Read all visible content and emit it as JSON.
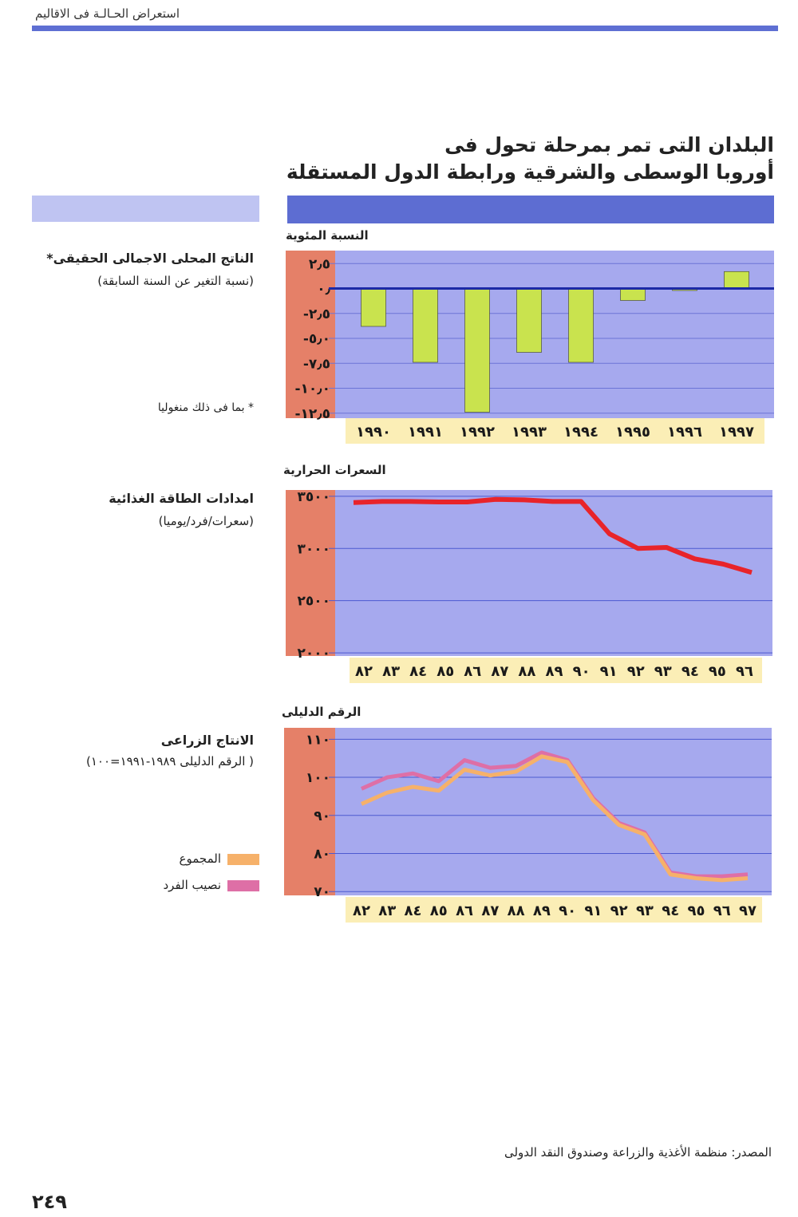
{
  "header": {
    "section": "استعراض الحـالـة فى الاقاليم"
  },
  "title": {
    "line1": "البلدان التى تمر بمرحلة تحول فى",
    "line2": "أوروبا الوسطى والشرقية ورابطة الدول المستقلة"
  },
  "sections": [
    {
      "title": "الناتج المحلى الاجمالى الحقيقى*",
      "subtitle": "(نسبة التغير عن السنة السابقة)",
      "unit": "النسبة المئوية",
      "footnote": "* بما فى ذلك منغوليا"
    },
    {
      "title": "امدادات الطاقة الغذائية",
      "subtitle": "(سعرات/فرد/يوميا)",
      "unit": "السعرات الحرارية"
    },
    {
      "title": "الانتاج الزراعى",
      "subtitle": "( الرقم الدليلى ١٩٨٩-١٩٩١=١٠٠)",
      "unit": "الرقم الدليلى",
      "legend": [
        {
          "name": "المجموع",
          "color": "#f6b16a"
        },
        {
          "name": "نصيب الفرد",
          "color": "#de6fa6"
        }
      ]
    }
  ],
  "chart_data": [
    {
      "type": "bar",
      "categories": [
        "١٩٩٠",
        "١٩٩١",
        "١٩٩٢",
        "١٩٩٣",
        "١٩٩٤",
        "١٩٩٥",
        "١٩٩٦",
        "١٩٩٧"
      ],
      "values": [
        -3.8,
        -7.4,
        -12.4,
        -6.4,
        -7.4,
        -1.2,
        -0.2,
        1.7
      ],
      "yticks": [
        2.5,
        0,
        -2.5,
        -5,
        -7.5,
        -10,
        -12.5
      ],
      "ytick_labels": [
        "٢٫٥",
        "٠٫",
        "-٢٫٥",
        "-٥٫٠",
        "-٧٫٥",
        "-١٠٫٠",
        "-١٢٫٥"
      ],
      "ylim": [
        -13,
        3.8
      ],
      "colors": {
        "bar": "#c9e34e",
        "plot": "#a6a9ee",
        "axis_band": "#e58068",
        "cat_band": "#fbeeb6",
        "zero": "#1c2aa6",
        "grid": "#6c74d6"
      }
    },
    {
      "type": "line",
      "x": [
        "٨٢",
        "٨٣",
        "٨٤",
        "٨٥",
        "٨٦",
        "٨٧",
        "٨٨",
        "٨٩",
        "٩٠",
        "٩١",
        "٩٢",
        "٩٣",
        "٩٤",
        "٩٥",
        "٩٦"
      ],
      "series": [
        {
          "values": [
            3440,
            3450,
            3450,
            3445,
            3445,
            3470,
            3465,
            3450,
            3450,
            3140,
            3000,
            3010,
            2900,
            2850,
            2770
          ]
        }
      ],
      "yticks": [
        3500,
        3000,
        2500,
        2000
      ],
      "ytick_labels": [
        "٣٥٠٠",
        "٣٠٠٠",
        "٢٥٠٠",
        "٢٠٠٠"
      ],
      "ylim": [
        1970,
        3560
      ],
      "colors": {
        "line": "#e8242a",
        "plot": "#a6a9ee",
        "axis_band": "#e58068",
        "cat_band": "#fbeeb6",
        "grid": "#4c5ad0"
      }
    },
    {
      "type": "line",
      "x": [
        "٨٢",
        "٨٣",
        "٨٤",
        "٨٥",
        "٨٦",
        "٨٧",
        "٨٨",
        "٨٩",
        "٩٠",
        "٩١",
        "٩٢",
        "٩٣",
        "٩٤",
        "٩٥",
        "٩٦",
        "٩٧"
      ],
      "series": [
        {
          "name": "المجموع",
          "values": [
            93,
            96,
            97.5,
            96.5,
            102,
            100.5,
            101.5,
            105.5,
            104,
            94,
            87.5,
            85,
            74.5,
            73.5,
            73,
            73.5
          ]
        },
        {
          "name": "نصيب الفرد",
          "values": [
            97,
            100,
            101,
            99,
            104.5,
            102.5,
            103,
            106.5,
            104.5,
            94.5,
            88,
            85.5,
            75,
            74,
            74,
            74.5
          ]
        }
      ],
      "yticks": [
        110,
        100,
        90,
        80,
        70
      ],
      "ytick_labels": [
        "١١٠",
        "١٠٠",
        "٩٠",
        "٨٠",
        "٧٠"
      ],
      "ylim": [
        69,
        113
      ],
      "colors": {
        "series": [
          "#f6b16a",
          "#de6fa6"
        ],
        "plot": "#a6a9ee",
        "axis_band": "#e58068",
        "cat_band": "#fbeeb6",
        "grid": "#4c5ad0"
      }
    }
  ],
  "footer": {
    "source": "المصدر: منظمة الأغذية والزراعة وصندوق النقد الدولى",
    "page_number": "٢٤٩"
  }
}
